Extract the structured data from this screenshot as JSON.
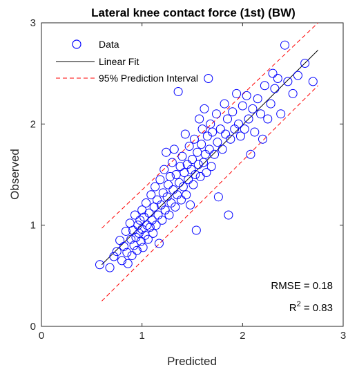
{
  "chart_data": {
    "type": "scatter",
    "title": "Lateral knee contact force (1st) (BW)",
    "xlabel": "Predicted",
    "ylabel": "Observed",
    "xlim": [
      0,
      3
    ],
    "ylim": [
      0,
      3
    ],
    "xticks": [
      "0",
      "1",
      "2",
      "3"
    ],
    "yticks": [
      "0",
      "1",
      "2",
      "3"
    ],
    "grid": false,
    "legend_position": "top-left",
    "legend": [
      "Data",
      "Linear Fit",
      "95% Prediction Interval"
    ],
    "series": [
      {
        "name": "Data",
        "marker": "circle",
        "color": "#0000ff",
        "points": [
          [
            0.58,
            0.61
          ],
          [
            0.68,
            0.58
          ],
          [
            0.72,
            0.69
          ],
          [
            0.75,
            0.74
          ],
          [
            0.78,
            0.85
          ],
          [
            0.8,
            0.65
          ],
          [
            0.82,
            0.79
          ],
          [
            0.84,
            0.94
          ],
          [
            0.85,
            0.73
          ],
          [
            0.86,
            0.62
          ],
          [
            0.88,
            1.02
          ],
          [
            0.89,
            0.86
          ],
          [
            0.9,
            0.7
          ],
          [
            0.91,
            0.95
          ],
          [
            0.92,
            0.8
          ],
          [
            0.93,
            1.1
          ],
          [
            0.94,
            0.88
          ],
          [
            0.95,
            0.75
          ],
          [
            0.96,
            1.0
          ],
          [
            0.97,
            0.92
          ],
          [
            0.98,
            1.05
          ],
          [
            0.99,
            0.84
          ],
          [
            1.0,
            1.15
          ],
          [
            1.0,
            0.96
          ],
          [
            1.01,
            0.78
          ],
          [
            1.02,
            1.08
          ],
          [
            1.03,
            0.9
          ],
          [
            1.04,
            1.22
          ],
          [
            1.05,
            1.0
          ],
          [
            1.06,
            0.86
          ],
          [
            1.07,
            1.12
          ],
          [
            1.08,
            0.98
          ],
          [
            1.09,
            1.3
          ],
          [
            1.1,
            1.05
          ],
          [
            1.11,
            0.92
          ],
          [
            1.12,
            1.18
          ],
          [
            1.13,
            1.38
          ],
          [
            1.14,
            1.0
          ],
          [
            1.15,
            1.25
          ],
          [
            1.16,
            1.1
          ],
          [
            1.17,
            0.82
          ],
          [
            1.18,
            1.45
          ],
          [
            1.19,
            1.2
          ],
          [
            1.2,
            1.05
          ],
          [
            1.21,
            1.32
          ],
          [
            1.22,
            1.55
          ],
          [
            1.23,
            1.15
          ],
          [
            1.24,
            1.72
          ],
          [
            1.25,
            1.28
          ],
          [
            1.26,
            1.4
          ],
          [
            1.27,
            1.1
          ],
          [
            1.28,
            1.48
          ],
          [
            1.29,
            1.22
          ],
          [
            1.3,
            1.62
          ],
          [
            1.31,
            1.35
          ],
          [
            1.32,
            1.75
          ],
          [
            1.33,
            1.18
          ],
          [
            1.34,
            1.5
          ],
          [
            1.35,
            1.3
          ],
          [
            1.36,
            2.32
          ],
          [
            1.37,
            1.42
          ],
          [
            1.38,
            1.58
          ],
          [
            1.39,
            1.25
          ],
          [
            1.4,
            1.68
          ],
          [
            1.41,
            1.38
          ],
          [
            1.42,
            1.52
          ],
          [
            1.43,
            1.9
          ],
          [
            1.44,
            1.3
          ],
          [
            1.45,
            1.6
          ],
          [
            1.46,
            1.45
          ],
          [
            1.47,
            1.78
          ],
          [
            1.48,
            1.2
          ],
          [
            1.49,
            1.55
          ],
          [
            1.5,
            1.65
          ],
          [
            1.51,
            1.4
          ],
          [
            1.52,
            1.85
          ],
          [
            1.53,
            1.5
          ],
          [
            1.54,
            0.95
          ],
          [
            1.55,
            1.72
          ],
          [
            1.56,
            1.6
          ],
          [
            1.57,
            2.05
          ],
          [
            1.58,
            1.48
          ],
          [
            1.59,
            1.8
          ],
          [
            1.6,
            1.95
          ],
          [
            1.61,
            1.62
          ],
          [
            1.62,
            2.15
          ],
          [
            1.63,
            1.7
          ],
          [
            1.64,
            1.52
          ],
          [
            1.65,
            1.88
          ],
          [
            1.66,
            2.45
          ],
          [
            1.67,
            1.75
          ],
          [
            1.68,
            2.0
          ],
          [
            1.69,
            1.58
          ],
          [
            1.7,
            1.92
          ],
          [
            1.72,
            1.7
          ],
          [
            1.74,
            2.1
          ],
          [
            1.75,
            1.82
          ],
          [
            1.76,
            1.28
          ],
          [
            1.78,
            1.95
          ],
          [
            1.8,
            1.75
          ],
          [
            1.82,
            2.2
          ],
          [
            1.83,
            1.9
          ],
          [
            1.85,
            2.05
          ],
          [
            1.86,
            1.1
          ],
          [
            1.88,
            1.85
          ],
          [
            1.9,
            2.12
          ],
          [
            1.92,
            1.95
          ],
          [
            1.94,
            2.3
          ],
          [
            1.96,
            2.0
          ],
          [
            1.98,
            1.88
          ],
          [
            2.0,
            2.18
          ],
          [
            2.02,
            1.95
          ],
          [
            2.04,
            2.28
          ],
          [
            2.06,
            2.05
          ],
          [
            2.08,
            1.7
          ],
          [
            2.1,
            2.15
          ],
          [
            2.12,
            1.92
          ],
          [
            2.15,
            2.25
          ],
          [
            2.18,
            2.1
          ],
          [
            2.2,
            1.85
          ],
          [
            2.22,
            2.38
          ],
          [
            2.25,
            2.05
          ],
          [
            2.28,
            2.2
          ],
          [
            2.3,
            2.5
          ],
          [
            2.32,
            2.35
          ],
          [
            2.35,
            2.45
          ],
          [
            2.38,
            2.1
          ],
          [
            2.42,
            2.78
          ],
          [
            2.45,
            2.42
          ],
          [
            2.5,
            2.3
          ],
          [
            2.55,
            2.48
          ],
          [
            2.62,
            2.6
          ],
          [
            2.7,
            2.42
          ]
        ]
      },
      {
        "name": "Linear Fit",
        "type": "line",
        "color": "#000000",
        "x": [
          0.6,
          2.75
        ],
        "y": [
          0.61,
          2.73
        ]
      },
      {
        "name": "95% Prediction Interval",
        "type": "line",
        "color": "#ff0000",
        "dashed": true,
        "upper": {
          "x": [
            0.6,
            2.75
          ],
          "y": [
            0.97,
            3.0
          ]
        },
        "lower": {
          "x": [
            0.6,
            2.75
          ],
          "y": [
            0.25,
            2.38
          ]
        }
      }
    ],
    "annotations": {
      "rmse": "RMSE = 0.18",
      "r2_base": "R",
      "r2_sup": "2",
      "r2_value": " = 0.83"
    }
  }
}
